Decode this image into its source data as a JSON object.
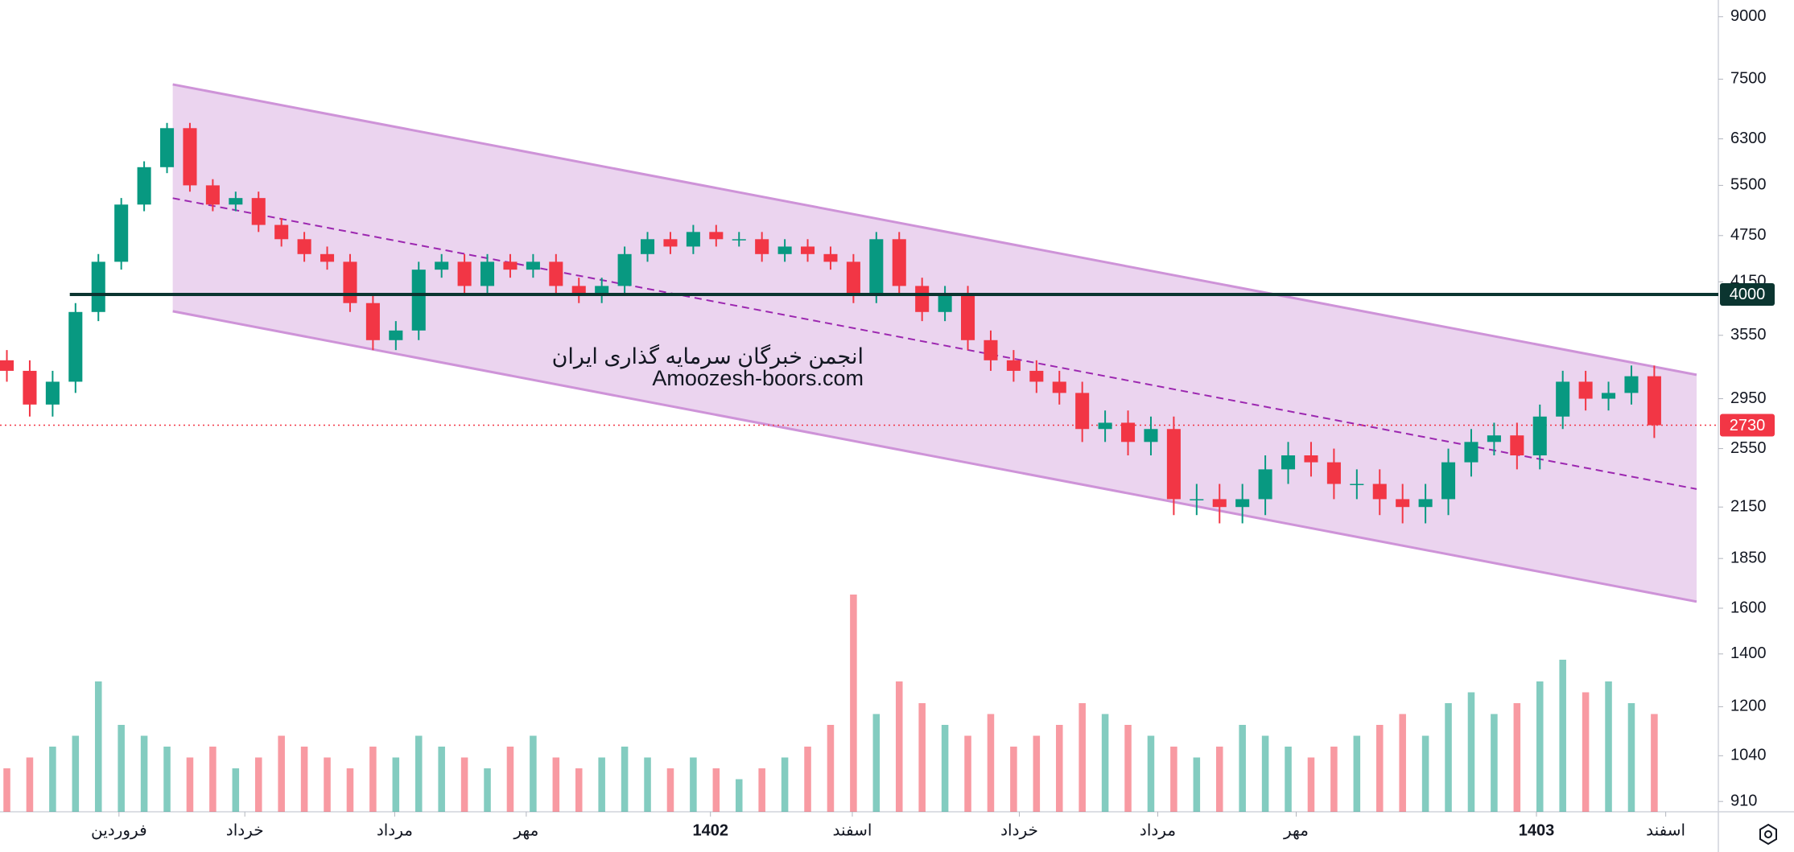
{
  "chart_data": {
    "type": "candlestick",
    "log_scale": true,
    "ylim": [
      883,
      9450
    ],
    "yticks": [
      910,
      1040,
      1200,
      1400,
      1600,
      1850,
      2150,
      2550,
      2950,
      3550,
      4150,
      4750,
      5500,
      6300,
      7500,
      9000
    ],
    "xlim": [
      -0.3,
      74.8
    ],
    "xticks": [
      {
        "value": 4.9,
        "label": "فروردین"
      },
      {
        "value": 10.4,
        "label": "خرداد"
      },
      {
        "value": 16.95,
        "label": "مرداد"
      },
      {
        "value": 22.7,
        "label": "مهر"
      },
      {
        "value": 30.75,
        "label": "1402"
      },
      {
        "value": 36.95,
        "label": "اسفند"
      },
      {
        "value": 44.25,
        "label": "خرداد"
      },
      {
        "value": 50.3,
        "label": "مرداد"
      },
      {
        "value": 56.35,
        "label": "مهر"
      },
      {
        "value": 66.85,
        "label": "1403"
      },
      {
        "value": 72.5,
        "label": "اسفند"
      }
    ],
    "up_color": "#089981",
    "down_color": "#f23645",
    "open": [
      3300,
      3200,
      2900,
      3100,
      3800,
      4400,
      5200,
      5800,
      6500,
      5500,
      5200,
      5300,
      4900,
      4700,
      4500,
      4400,
      3900,
      3500,
      3600,
      4300,
      4400,
      4100,
      4400,
      4300,
      4400,
      4100,
      4000,
      4100,
      4500,
      4700,
      4600,
      4800,
      4700,
      4700,
      4500,
      4600,
      4500,
      4400,
      4000,
      4700,
      4100,
      3800,
      4000,
      3500,
      3300,
      3200,
      3100,
      3000,
      2700,
      2750,
      2600,
      2700,
      2200,
      2200,
      2150,
      2200,
      2400,
      2500,
      2450,
      2300,
      2300,
      2200,
      2150,
      2200,
      2450,
      2600,
      2650,
      2500,
      2800,
      3100,
      2950,
      3000,
      3150
    ],
    "high": [
      3400,
      3300,
      3200,
      3900,
      4500,
      5300,
      5900,
      6600,
      6600,
      5600,
      5400,
      5400,
      5000,
      4800,
      4600,
      4500,
      4000,
      3700,
      4400,
      4500,
      4500,
      4500,
      4500,
      4500,
      4500,
      4200,
      4200,
      4600,
      4800,
      4800,
      4900,
      4900,
      4800,
      4800,
      4700,
      4700,
      4600,
      4500,
      4800,
      4800,
      4200,
      4100,
      4100,
      3600,
      3400,
      3300,
      3200,
      3100,
      2850,
      2850,
      2800,
      2800,
      2300,
      2300,
      2300,
      2500,
      2600,
      2600,
      2550,
      2400,
      2400,
      2300,
      2300,
      2550,
      2700,
      2750,
      2750,
      2900,
      3200,
      3200,
      3100,
      3250,
      3250
    ],
    "low": [
      3100,
      2800,
      2800,
      3000,
      3700,
      4300,
      5100,
      5700,
      5400,
      5100,
      5100,
      4800,
      4600,
      4400,
      4300,
      3800,
      3400,
      3400,
      3500,
      4200,
      4000,
      4000,
      4200,
      4200,
      4000,
      3900,
      3900,
      4000,
      4400,
      4500,
      4500,
      4600,
      4600,
      4400,
      4400,
      4400,
      4300,
      3900,
      3900,
      4000,
      3700,
      3700,
      3400,
      3200,
      3100,
      3000,
      2900,
      2600,
      2600,
      2500,
      2500,
      2100,
      2100,
      2050,
      2050,
      2100,
      2300,
      2350,
      2200,
      2200,
      2100,
      2050,
      2050,
      2100,
      2350,
      2500,
      2400,
      2400,
      2700,
      2850,
      2850,
      2900,
      2630
    ],
    "close": [
      3200,
      2900,
      3100,
      3800,
      4400,
      5200,
      5800,
      6500,
      5500,
      5200,
      5300,
      4900,
      4700,
      4500,
      4400,
      3900,
      3500,
      3600,
      4300,
      4400,
      4100,
      4400,
      4300,
      4400,
      4100,
      4000,
      4100,
      4500,
      4700,
      4600,
      4800,
      4700,
      4700,
      4500,
      4600,
      4500,
      4400,
      4000,
      4700,
      4100,
      3800,
      4000,
      3500,
      3300,
      3200,
      3100,
      3000,
      2700,
      2750,
      2600,
      2700,
      2200,
      2200,
      2150,
      2200,
      2400,
      2500,
      2450,
      2300,
      2300,
      2200,
      2150,
      2200,
      2450,
      2600,
      2650,
      2500,
      2800,
      3100,
      2950,
      3000,
      3150,
      2730
    ],
    "volume": [
      20,
      25,
      30,
      35,
      60,
      40,
      35,
      30,
      25,
      30,
      20,
      25,
      35,
      30,
      25,
      20,
      30,
      25,
      35,
      30,
      25,
      20,
      30,
      35,
      25,
      20,
      25,
      30,
      25,
      20,
      25,
      20,
      15,
      20,
      25,
      30,
      40,
      100,
      45,
      60,
      50,
      40,
      35,
      45,
      30,
      35,
      40,
      50,
      45,
      40,
      35,
      30,
      25,
      30,
      40,
      35,
      30,
      25,
      30,
      35,
      40,
      45,
      35,
      50,
      55,
      45,
      50,
      60,
      70,
      55,
      60,
      50,
      45
    ],
    "channel": {
      "x": [
        7.25,
        73.85
      ],
      "upper": [
        7385,
        3163
      ],
      "lower": [
        3808,
        1631
      ],
      "midline": [
        5298,
        2266
      ],
      "color": "#ce93d8"
    },
    "horizontal_line": {
      "value": 4000,
      "from_x": 2.75,
      "color": "#0b3530"
    },
    "last_price": 2730,
    "annotations": [
      "انجمن خبرگان سرمایه گذاری ایران",
      "Amoozesh-boors.com"
    ]
  }
}
